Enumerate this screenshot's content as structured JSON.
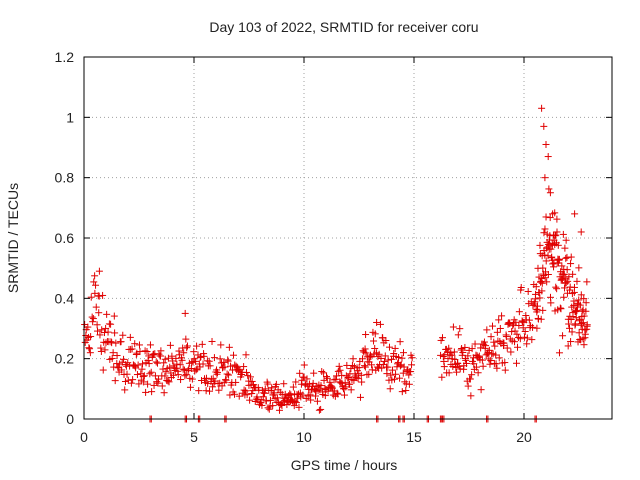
{
  "chart_data": {
    "type": "scatter",
    "title": "Day 103 of 2022, SRMTID for receiver coru",
    "xlabel": "GPS time / hours",
    "ylabel": "SRMTID / TECUs",
    "xlim": [
      0,
      24
    ],
    "ylim": [
      0,
      1.2
    ],
    "x_ticks": [
      "0",
      "5",
      "10",
      "15",
      "20"
    ],
    "y_ticks": [
      "0",
      "0.2",
      "0.4",
      "0.6",
      "0.8",
      "1",
      "1.2"
    ],
    "x_tick_values": [
      0,
      5,
      10,
      15,
      20
    ],
    "y_tick_values": [
      0,
      0.2,
      0.4,
      0.6,
      0.8,
      1.0,
      1.2
    ],
    "grid": true,
    "marker": "+",
    "color": "#e00000",
    "series": [
      {
        "name": "SRMTID",
        "trend": [
          [
            0.0,
            0.22
          ],
          [
            0.3,
            0.33
          ],
          [
            0.6,
            0.38
          ],
          [
            0.9,
            0.25
          ],
          [
            1.2,
            0.26
          ],
          [
            1.6,
            0.22
          ],
          [
            2.0,
            0.18
          ],
          [
            2.5,
            0.18
          ],
          [
            3.0,
            0.17
          ],
          [
            3.5,
            0.15
          ],
          [
            4.0,
            0.16
          ],
          [
            4.5,
            0.19
          ],
          [
            5.0,
            0.17
          ],
          [
            5.5,
            0.18
          ],
          [
            6.0,
            0.17
          ],
          [
            6.5,
            0.14
          ],
          [
            7.0,
            0.15
          ],
          [
            7.5,
            0.12
          ],
          [
            8.0,
            0.09
          ],
          [
            8.5,
            0.07
          ],
          [
            9.0,
            0.06
          ],
          [
            9.5,
            0.09
          ],
          [
            10.0,
            0.12
          ],
          [
            10.5,
            0.09
          ],
          [
            11.0,
            0.1
          ],
          [
            11.5,
            0.11
          ],
          [
            12.0,
            0.14
          ],
          [
            12.5,
            0.16
          ],
          [
            13.0,
            0.19
          ],
          [
            13.5,
            0.22
          ],
          [
            14.0,
            0.19
          ],
          [
            14.5,
            0.17
          ],
          [
            14.9,
            0.17
          ],
          [
            16.3,
            0.2
          ],
          [
            16.8,
            0.19
          ],
          [
            17.2,
            0.2
          ],
          [
            17.7,
            0.2
          ],
          [
            18.2,
            0.21
          ],
          [
            18.7,
            0.24
          ],
          [
            19.2,
            0.25
          ],
          [
            19.7,
            0.28
          ],
          [
            20.2,
            0.32
          ],
          [
            20.6,
            0.4
          ],
          [
            21.0,
            0.55
          ],
          [
            21.4,
            0.55
          ],
          [
            21.8,
            0.45
          ],
          [
            22.2,
            0.4
          ],
          [
            22.6,
            0.35
          ],
          [
            22.9,
            0.33
          ]
        ],
        "outliers": [
          [
            20.8,
            1.03
          ],
          [
            20.9,
            0.97
          ],
          [
            21.0,
            0.91
          ],
          [
            21.1,
            0.87
          ],
          [
            20.95,
            0.8
          ],
          [
            21.2,
            0.75
          ],
          [
            21.3,
            0.68
          ],
          [
            22.3,
            0.68
          ],
          [
            21.5,
            0.62
          ],
          [
            22.6,
            0.62
          ],
          [
            4.6,
            0.35
          ],
          [
            0.7,
            0.49
          ],
          [
            13.3,
            0.32
          ],
          [
            12.8,
            0.28
          ]
        ],
        "zeros": [
          3.0,
          4.6,
          5.2,
          6.4,
          13.3,
          14.3,
          14.5,
          15.6,
          16.2,
          16.3,
          18.3,
          20.5
        ],
        "gaps": [
          [
            14.95,
            16.2
          ]
        ]
      }
    ]
  }
}
